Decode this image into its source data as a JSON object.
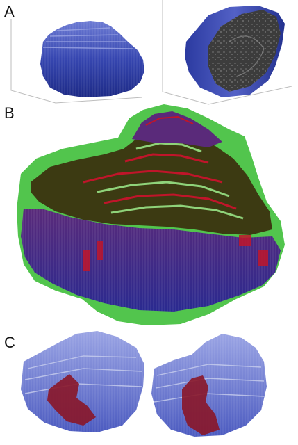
{
  "labels": {
    "a": "A",
    "b": "B",
    "c": "C"
  },
  "colors": {
    "voxel_blue": "#3a4bb8",
    "voxel_blue_light": "#7e8ad8",
    "green_overlay": "#3fbf3a",
    "red_overlay": "#c0152a",
    "mri_gray": "#4a4a4a"
  }
}
